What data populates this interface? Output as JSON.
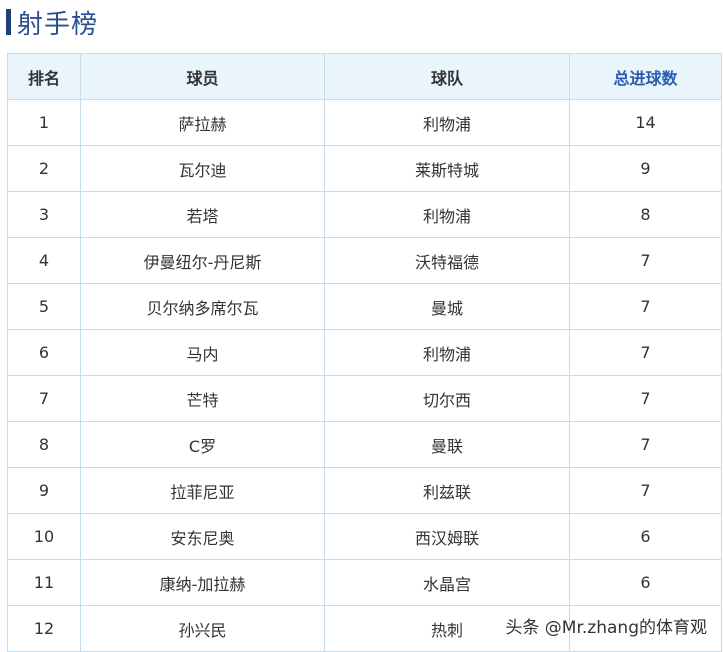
{
  "title": "射手榜",
  "table": {
    "headers": [
      "排名",
      "球员",
      "球队",
      "总进球数"
    ],
    "rows": [
      {
        "rank": "1",
        "player": "萨拉赫",
        "team": "利物浦",
        "goals": "14"
      },
      {
        "rank": "2",
        "player": "瓦尔迪",
        "team": "莱斯特城",
        "goals": "9"
      },
      {
        "rank": "3",
        "player": "若塔",
        "team": "利物浦",
        "goals": "8"
      },
      {
        "rank": "4",
        "player": "伊曼纽尔-丹尼斯",
        "team": "沃特福德",
        "goals": "7"
      },
      {
        "rank": "5",
        "player": "贝尔纳多席尔瓦",
        "team": "曼城",
        "goals": "7"
      },
      {
        "rank": "6",
        "player": "马内",
        "team": "利物浦",
        "goals": "7"
      },
      {
        "rank": "7",
        "player": "芒特",
        "team": "切尔西",
        "goals": "7"
      },
      {
        "rank": "8",
        "player": "C罗",
        "team": "曼联",
        "goals": "7"
      },
      {
        "rank": "9",
        "player": "拉菲尼亚",
        "team": "利兹联",
        "goals": "7"
      },
      {
        "rank": "10",
        "player": "安东尼奥",
        "team": "西汉姆联",
        "goals": "6"
      },
      {
        "rank": "11",
        "player": "康纳-加拉赫",
        "team": "水晶宫",
        "goals": "6"
      },
      {
        "rank": "12",
        "player": "孙兴民",
        "team": "热刺",
        "goals": ""
      }
    ]
  },
  "watermark": "头条 @Mr.zhang的体育观",
  "colors": {
    "accent": "#1f3f7a",
    "title": "#2a4f8f",
    "header_bg": "#e9f4fb",
    "border": "#c6dcea",
    "goals_header": "#2a5db0"
  }
}
